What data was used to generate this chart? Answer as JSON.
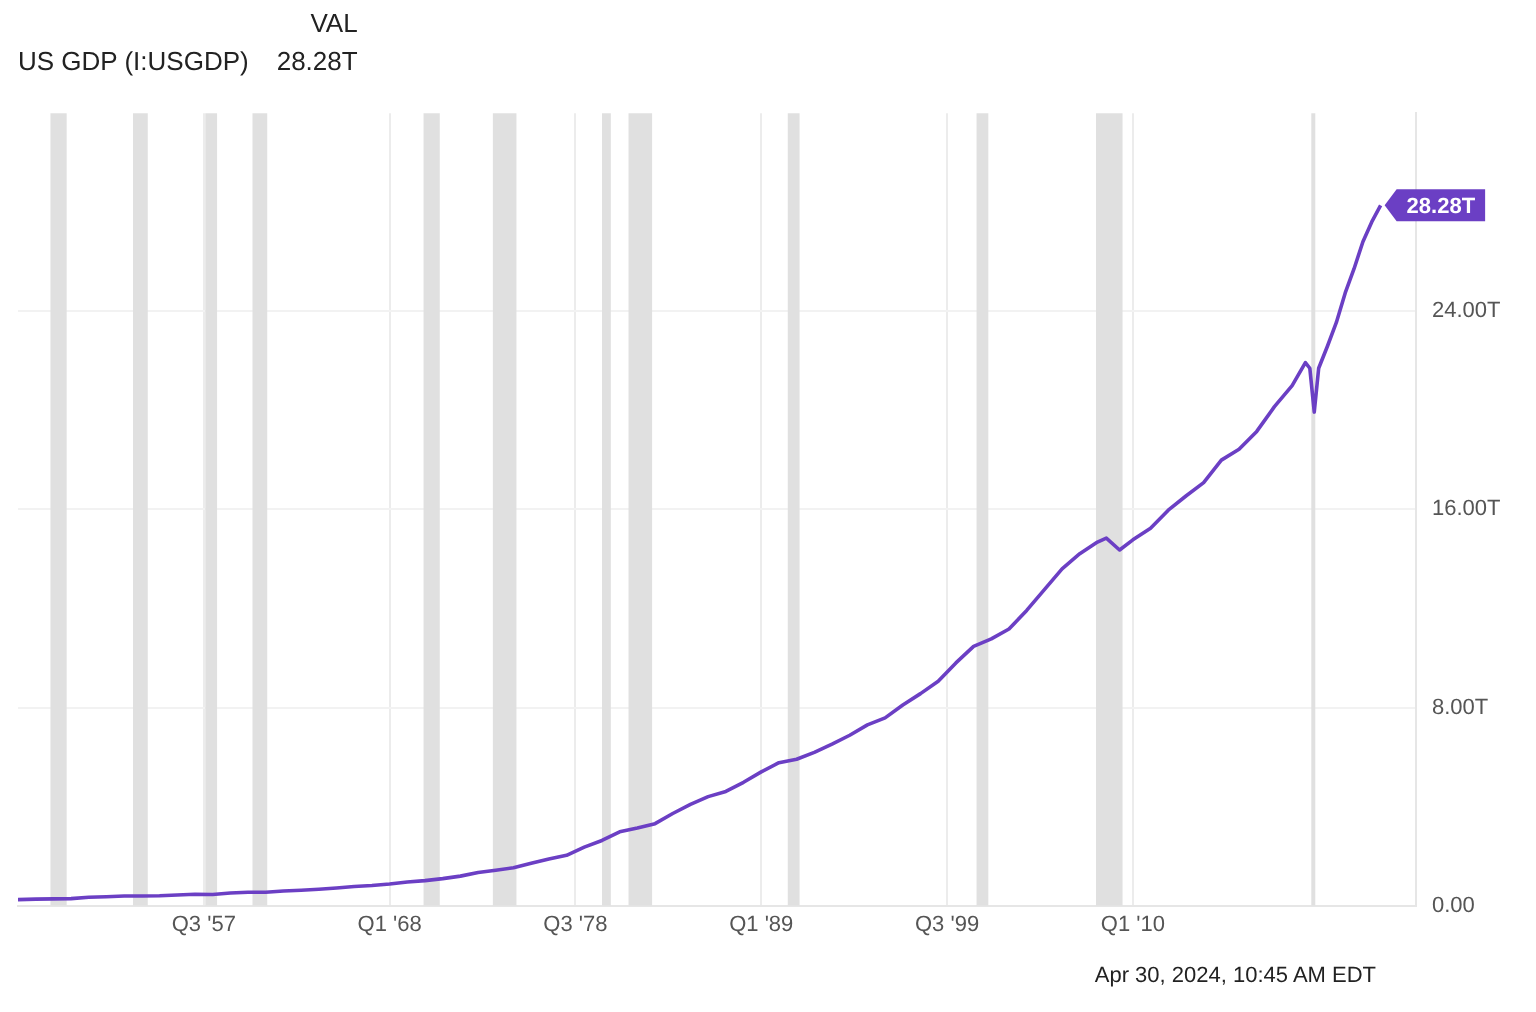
{
  "chart_data": {
    "type": "line",
    "legend_title": "VAL",
    "legend": "top left",
    "grid": true,
    "marker": "none",
    "line_style": "solid",
    "xlim": [
      "1947-01",
      "2026-01"
    ],
    "xticks": [
      {
        "value": "1957-07",
        "label": "Q3 '57"
      },
      {
        "value": "1968-01",
        "label": "Q1 '68"
      },
      {
        "value": "1978-07",
        "label": "Q3 '78"
      },
      {
        "value": "1989-01",
        "label": "Q1 '89"
      },
      {
        "value": "1999-07",
        "label": "Q3 '99"
      },
      {
        "value": "2010-01",
        "label": "Q1 '10"
      }
    ],
    "ylim": [
      0,
      32
    ],
    "yticks": [
      {
        "value": 0,
        "label": "0.00"
      },
      {
        "value": 8,
        "label": "8.00T"
      },
      {
        "value": 16,
        "label": "16.00T"
      },
      {
        "value": 24,
        "label": "24.00T"
      }
    ],
    "x": [
      "1947-01",
      "1948-01",
      "1949-01",
      "1950-01",
      "1951-01",
      "1952-01",
      "1953-01",
      "1954-01",
      "1955-01",
      "1956-01",
      "1957-01",
      "1958-01",
      "1959-01",
      "1960-01",
      "1961-01",
      "1962-01",
      "1963-01",
      "1964-01",
      "1965-01",
      "1966-01",
      "1967-01",
      "1968-01",
      "1969-01",
      "1970-01",
      "1971-01",
      "1972-01",
      "1973-01",
      "1974-01",
      "1975-01",
      "1976-01",
      "1977-01",
      "1978-01",
      "1979-01",
      "1980-01",
      "1981-01",
      "1982-01",
      "1983-01",
      "1984-01",
      "1985-01",
      "1986-01",
      "1987-01",
      "1988-01",
      "1989-01",
      "1990-01",
      "1991-01",
      "1992-01",
      "1993-01",
      "1994-01",
      "1995-01",
      "1996-01",
      "1997-01",
      "1998-01",
      "1999-01",
      "2000-01",
      "2001-01",
      "2002-01",
      "2003-01",
      "2004-01",
      "2005-01",
      "2006-01",
      "2007-01",
      "2008-01",
      "2008-07",
      "2009-04",
      "2010-01",
      "2011-01",
      "2012-01",
      "2013-01",
      "2014-01",
      "2015-01",
      "2016-01",
      "2017-01",
      "2018-01",
      "2019-01",
      "2019-10",
      "2020-01",
      "2020-04",
      "2020-07",
      "2021-01",
      "2021-07",
      "2022-01",
      "2022-07",
      "2023-01",
      "2023-07",
      "2024-01"
    ],
    "series": [
      {
        "name": "US GDP (I:USGDP)",
        "color": "#6b3fc4",
        "values": [
          0.24,
          0.26,
          0.27,
          0.28,
          0.34,
          0.36,
          0.39,
          0.39,
          0.4,
          0.43,
          0.46,
          0.45,
          0.51,
          0.54,
          0.54,
          0.59,
          0.62,
          0.66,
          0.71,
          0.77,
          0.81,
          0.87,
          0.95,
          1.01,
          1.09,
          1.19,
          1.34,
          1.43,
          1.53,
          1.71,
          1.88,
          2.03,
          2.36,
          2.63,
          2.98,
          3.13,
          3.31,
          3.72,
          4.09,
          4.4,
          4.61,
          4.98,
          5.4,
          5.77,
          5.91,
          6.19,
          6.52,
          6.88,
          7.3,
          7.58,
          8.1,
          8.56,
          9.06,
          9.8,
          10.47,
          10.77,
          11.17,
          11.92,
          12.76,
          13.6,
          14.21,
          14.68,
          14.84,
          14.36,
          14.77,
          15.24,
          15.97,
          16.54,
          17.08,
          17.99,
          18.43,
          19.15,
          20.15,
          21.0,
          21.93,
          21.7,
          19.93,
          21.7,
          22.6,
          23.55,
          24.74,
          25.72,
          26.81,
          27.61,
          28.28
        ],
        "value_labels": [
          null,
          null,
          null,
          null,
          null,
          null,
          null,
          null,
          null,
          null,
          null,
          null,
          null,
          null,
          null,
          null,
          null,
          null,
          null,
          null,
          null,
          null,
          null,
          null,
          null,
          null,
          null,
          null,
          null,
          null,
          null,
          null,
          null,
          null,
          null,
          null,
          null,
          null,
          null,
          null,
          null,
          null,
          null,
          null,
          null,
          null,
          null,
          null,
          null,
          null,
          null,
          null,
          null,
          null,
          null,
          null,
          null,
          null,
          null,
          null,
          null,
          null,
          null,
          null,
          null,
          null,
          null,
          null,
          null,
          null,
          null,
          null,
          null,
          null,
          null,
          null,
          null,
          null,
          null,
          null,
          null,
          null,
          null,
          null,
          "28.28T"
        ]
      }
    ],
    "bands": [
      {
        "axis": "x",
        "from": "1948-11",
        "to": "1949-10",
        "color": "#e0e0e0"
      },
      {
        "axis": "x",
        "from": "1953-07",
        "to": "1954-05",
        "color": "#e0e0e0"
      },
      {
        "axis": "x",
        "from": "1957-08",
        "to": "1958-04",
        "color": "#e0e0e0"
      },
      {
        "axis": "x",
        "from": "1960-04",
        "to": "1961-02",
        "color": "#e0e0e0"
      },
      {
        "axis": "x",
        "from": "1969-12",
        "to": "1970-11",
        "color": "#e0e0e0"
      },
      {
        "axis": "x",
        "from": "1973-11",
        "to": "1975-03",
        "color": "#e0e0e0"
      },
      {
        "axis": "x",
        "from": "1980-01",
        "to": "1980-07",
        "color": "#e0e0e0"
      },
      {
        "axis": "x",
        "from": "1981-07",
        "to": "1982-11",
        "color": "#e0e0e0"
      },
      {
        "axis": "x",
        "from": "1990-07",
        "to": "1991-03",
        "color": "#e0e0e0"
      },
      {
        "axis": "x",
        "from": "2001-03",
        "to": "2001-11",
        "color": "#e0e0e0"
      },
      {
        "axis": "x",
        "from": "2007-12",
        "to": "2009-06",
        "color": "#e0e0e0"
      },
      {
        "axis": "x",
        "from": "2020-02",
        "to": "2020-04",
        "color": "#e0e0e0"
      }
    ],
    "annotations": [
      "Apr 30, 2024, 10:45 AM EDT"
    ]
  }
}
